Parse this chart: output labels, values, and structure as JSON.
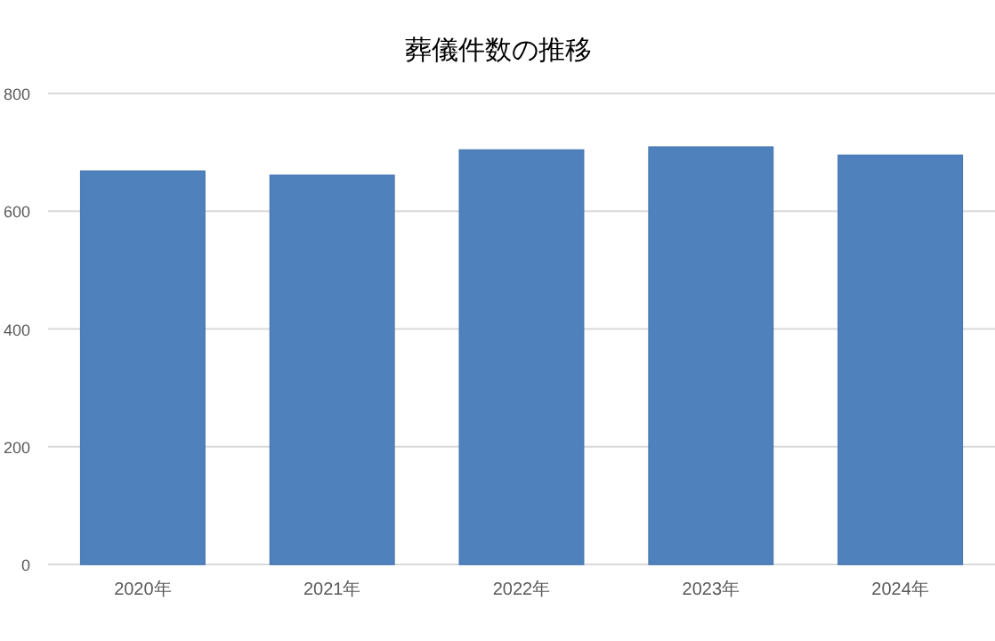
{
  "chart_data": {
    "type": "bar",
    "title": "葬儀件数の推移",
    "categories": [
      "2020年",
      "2021年",
      "2022年",
      "2023年",
      "2024年"
    ],
    "values": [
      668,
      661,
      704,
      709,
      695
    ],
    "color": "#4f81bd",
    "ylim": [
      0,
      800
    ],
    "yticks": [
      0,
      200,
      400,
      600,
      800
    ],
    "grid": "y",
    "legend": false
  }
}
